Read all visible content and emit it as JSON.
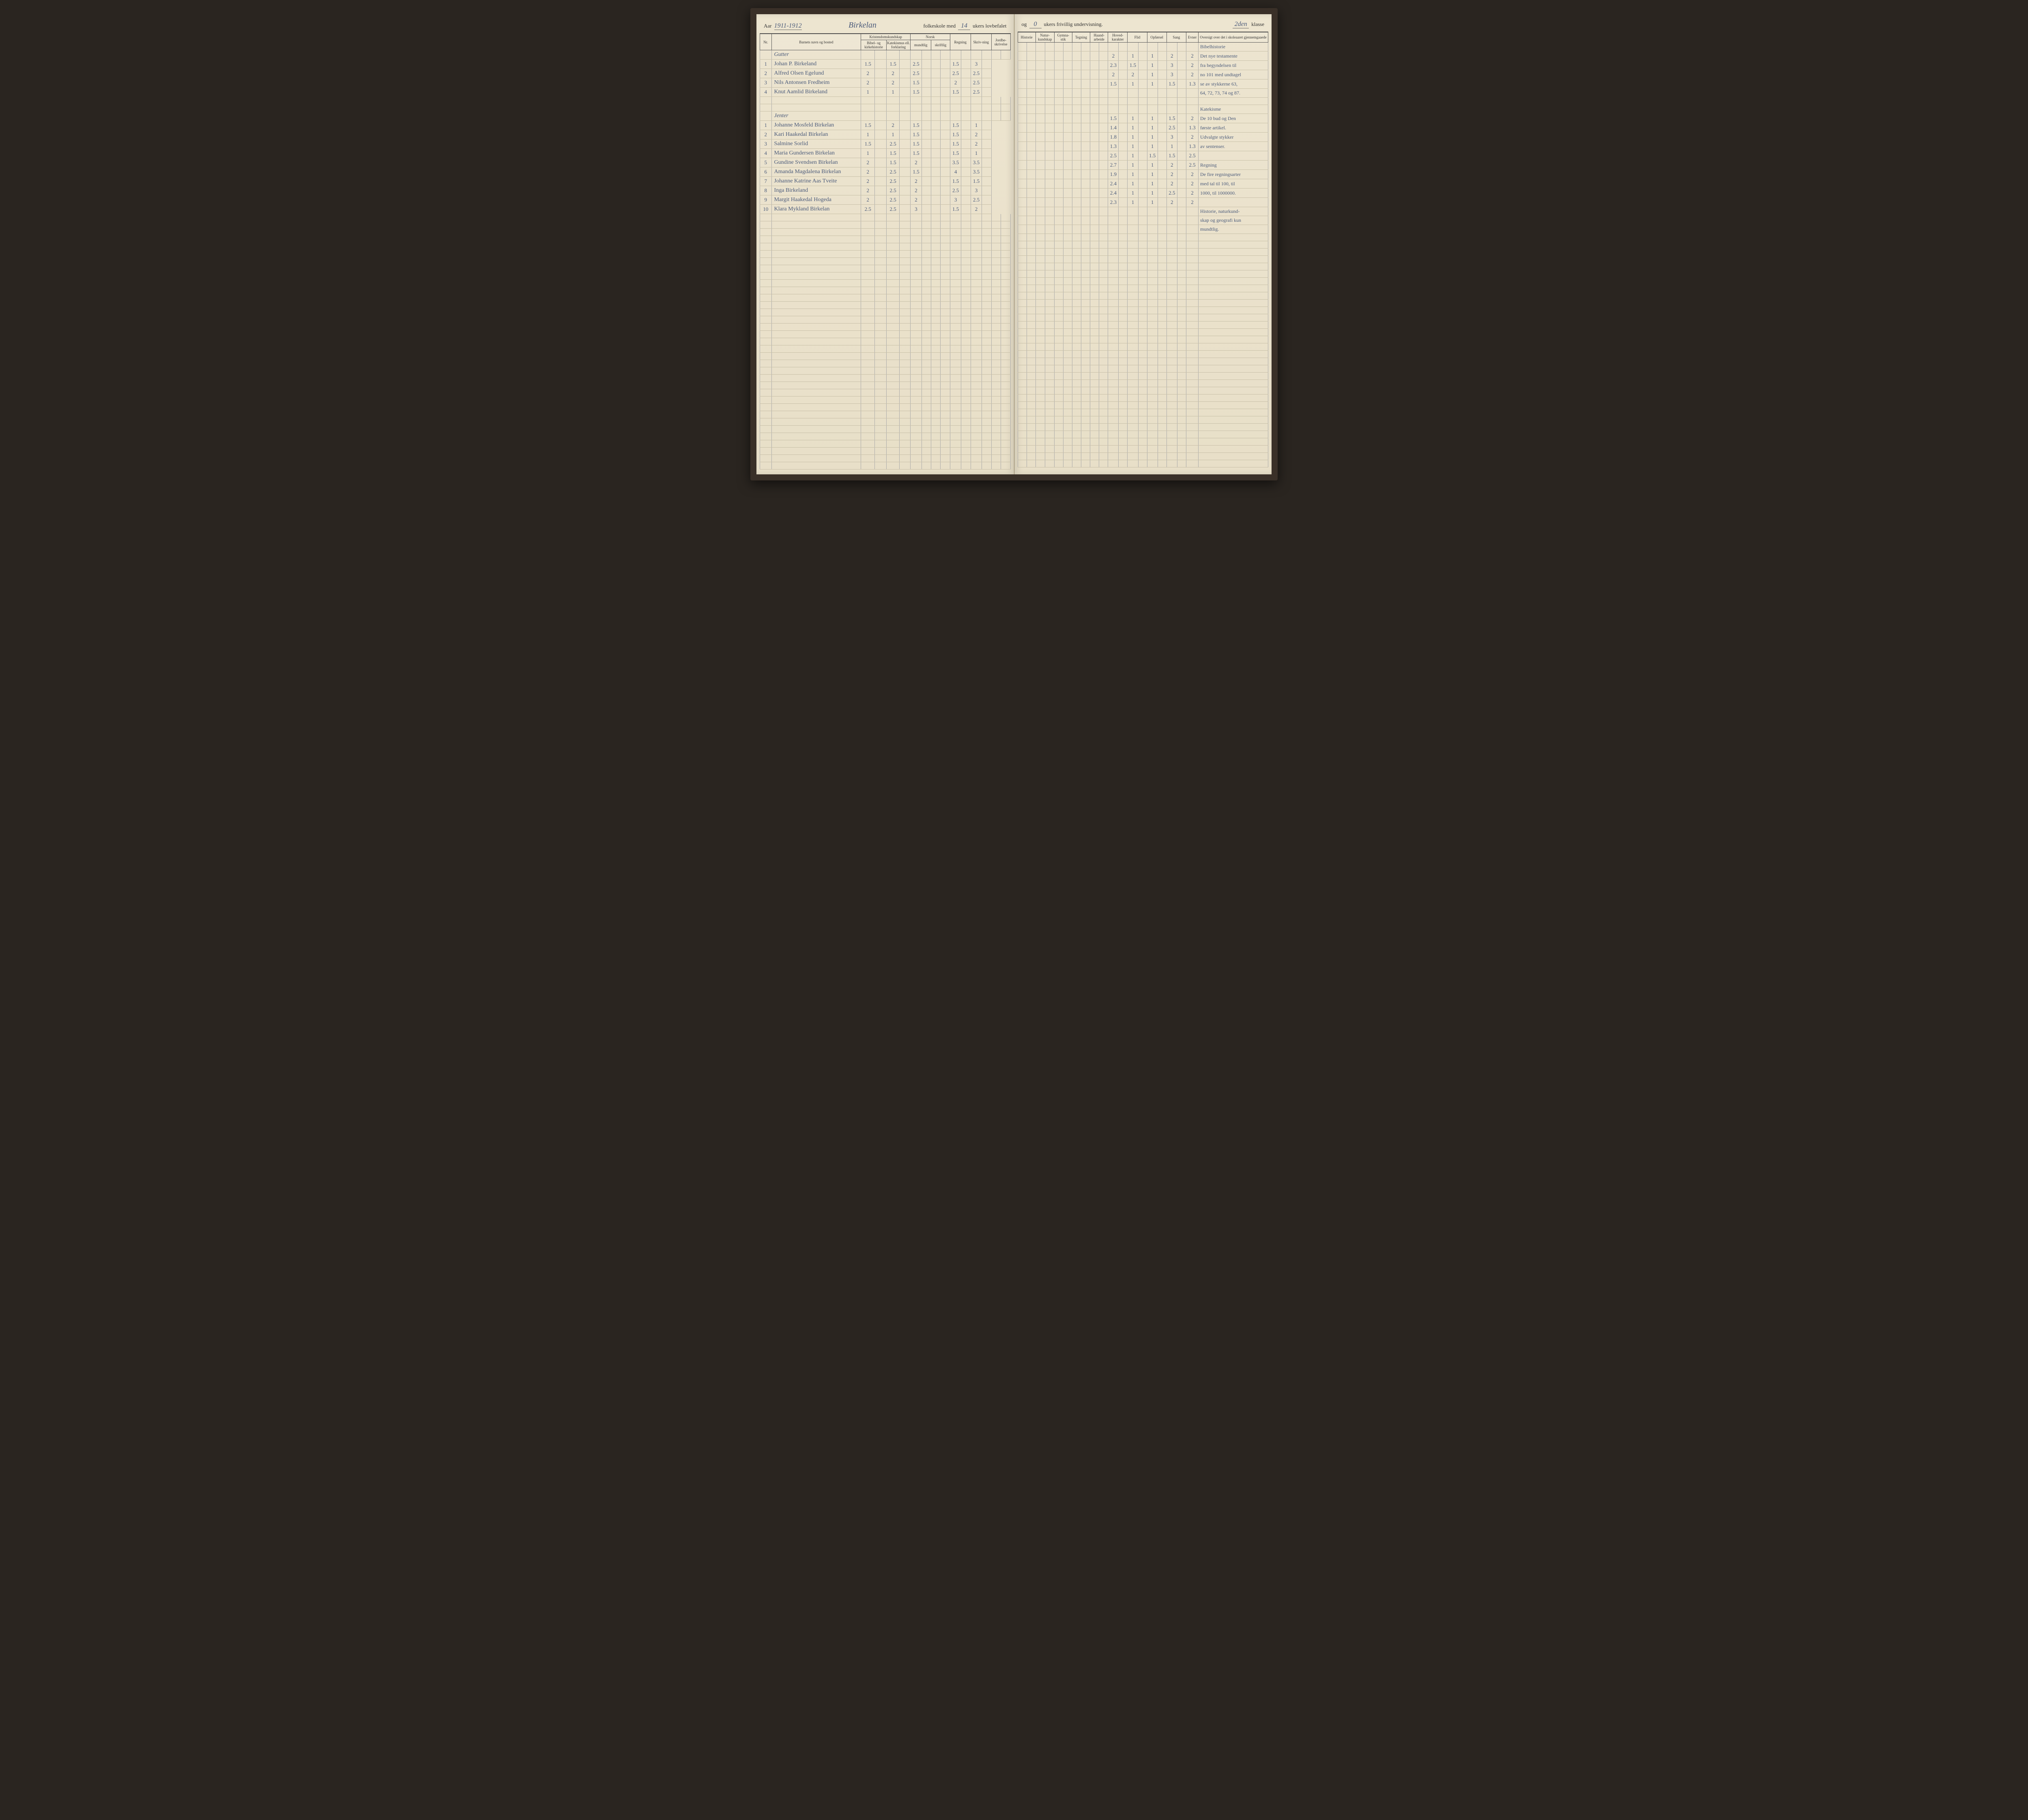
{
  "header": {
    "aar_label": "Aar",
    "aar_value": "1911-1912",
    "school_name": "Birkelan",
    "folkeskole_text": "folkeskole med",
    "weeks_lovbefalet": "14",
    "ukers_lovbefalet": "ukers lovbefalet",
    "og_text": "og",
    "weeks_frivillig": "0",
    "ukers_frivillig": "ukers frivillig undervisning.",
    "klasse_value": "2den",
    "klasse_label": "klasse"
  },
  "columns_left": {
    "nr": "Nr.",
    "navn": "Barnets navn og bosted",
    "kristendom": "Kristendomskundskap",
    "bibel": "Bibel- og kirkehistorie",
    "katekismus": "Katekismus ell. forklaring",
    "norsk": "Norsk",
    "mundtlig": "mundtlig",
    "skriftlig": "skriftlig",
    "regning": "Regning",
    "skrivning": "Skriv-ning",
    "jordbeskrivelse": "Jordbe-skrivelse"
  },
  "columns_right": {
    "historie": "Historie",
    "naturkundskap": "Natur-kundskap",
    "gymnastik": "Gymna-stik",
    "tegning": "Tegning",
    "haandarbeide": "Haand-arbeide",
    "hovedkarakter": "Hoved-karakter",
    "flid": "Flid",
    "opforsel": "Opførsel",
    "sang": "Sang",
    "evner": "Evner",
    "oversigt": "Oversigt over det i skoleaaret gjennemgaaede"
  },
  "sections": {
    "gutter": "Gutter",
    "jenter": "Jenter"
  },
  "gutter": [
    {
      "nr": "1",
      "name": "Johan P. Birkeland",
      "bibel": "1.5",
      "kat": "1.5",
      "mund": "2.5",
      "skr": "",
      "reg": "1.5",
      "skriv": "3",
      "hoved": "2",
      "flid": "1",
      "opf": "1",
      "sang": "2",
      "evner": "2"
    },
    {
      "nr": "2",
      "name": "Alfred Olsen Egelund",
      "bibel": "2",
      "kat": "2",
      "mund": "2.5",
      "skr": "",
      "reg": "2.5",
      "skriv": "2.5",
      "hoved": "2.3",
      "flid": "1.5",
      "opf": "1",
      "sang": "3",
      "evner": "2"
    },
    {
      "nr": "3",
      "name": "Nils Antonsen Fredheim",
      "bibel": "2",
      "kat": "2",
      "mund": "1.5",
      "skr": "",
      "reg": "2",
      "skriv": "2.5",
      "hoved": "2",
      "flid": "2",
      "opf": "1",
      "sang": "3",
      "evner": "2"
    },
    {
      "nr": "4",
      "name": "Knut Aamlid Birkeland",
      "bibel": "1",
      "kat": "1",
      "mund": "1.5",
      "skr": "",
      "reg": "1.5",
      "skriv": "2.5",
      "hoved": "1.5",
      "flid": "1",
      "opf": "1",
      "sang": "1.5",
      "evner": "1.3"
    }
  ],
  "jenter": [
    {
      "nr": "1",
      "name": "Johanne Mosfeld Birkelan",
      "bibel": "1.5",
      "kat": "2",
      "mund": "1.5",
      "skr": "",
      "reg": "1.5",
      "skriv": "1",
      "hoved": "1.5",
      "flid": "1",
      "opf": "1",
      "sang": "1.5",
      "evner": "2"
    },
    {
      "nr": "2",
      "name": "Kari Haakedal Birkelan",
      "bibel": "1",
      "kat": "1",
      "mund": "1.5",
      "skr": "",
      "reg": "1.5",
      "skriv": "2",
      "hoved": "1.4",
      "flid": "1",
      "opf": "1",
      "sang": "2.5",
      "evner": "1.3"
    },
    {
      "nr": "3",
      "name": "Salmine Sorlid",
      "bibel": "1.5",
      "kat": "2.5",
      "mund": "1.5",
      "skr": "",
      "reg": "1.5",
      "skriv": "2",
      "hoved": "1.8",
      "flid": "1",
      "opf": "1",
      "sang": "3",
      "evner": "2"
    },
    {
      "nr": "4",
      "name": "Maria Gundersen Birkelan",
      "bibel": "1",
      "kat": "1.5",
      "mund": "1.5",
      "skr": "",
      "reg": "1.5",
      "skriv": "1",
      "hoved": "1.3",
      "flid": "1",
      "opf": "1",
      "sang": "1",
      "evner": "1.3"
    },
    {
      "nr": "5",
      "name": "Gundine Svendsen Birkelan",
      "bibel": "2",
      "kat": "1.5",
      "mund": "2",
      "skr": "",
      "reg": "3.5",
      "skriv": "3.5",
      "hoved": "2.5",
      "flid": "1",
      "opf": "1.5",
      "sang": "1.5",
      "evner": "2.5"
    },
    {
      "nr": "6",
      "name": "Amanda Magdalena Birkelan",
      "bibel": "2",
      "kat": "2.5",
      "mund": "1.5",
      "skr": "",
      "reg": "4",
      "skriv": "3.5",
      "hoved": "2.7",
      "flid": "1",
      "opf": "1",
      "sang": "2",
      "evner": "2.5"
    },
    {
      "nr": "7",
      "name": "Johanne Katrine Aas Tveite",
      "bibel": "2",
      "kat": "2.5",
      "mund": "2",
      "skr": "",
      "reg": "1.5",
      "skriv": "1.5",
      "hoved": "1.9",
      "flid": "1",
      "opf": "1",
      "sang": "2",
      "evner": "2"
    },
    {
      "nr": "8",
      "name": "Inga Birkeland",
      "bibel": "2",
      "kat": "2.5",
      "mund": "2",
      "skr": "",
      "reg": "2.5",
      "skriv": "3",
      "hoved": "2.4",
      "flid": "1",
      "opf": "1",
      "sang": "2",
      "evner": "2"
    },
    {
      "nr": "9",
      "name": "Margit Haakedal Hogeda",
      "bibel": "2",
      "kat": "2.5",
      "mund": "2",
      "skr": "",
      "reg": "3",
      "skriv": "2.5",
      "hoved": "2.4",
      "flid": "1",
      "opf": "1",
      "sang": "2.5",
      "evner": "2"
    },
    {
      "nr": "10",
      "name": "Klara Mykland Birkelan",
      "bibel": "2.5",
      "kat": "2.5",
      "mund": "3",
      "skr": "",
      "reg": "1.5",
      "skriv": "2",
      "hoved": "2.3",
      "flid": "1",
      "opf": "1",
      "sang": "2",
      "evner": "2"
    }
  ],
  "notes": [
    "Bibelhistorie",
    "Det nye testamente",
    "fra begyndelsen til",
    "no 101 med undtagel",
    "se av stykkerne 63,",
    "64, 72, 73, 74 og 87.",
    "",
    "Katekisme",
    "De 10 bud og Den",
    "første artikel.",
    "Udvalgte stykker",
    "av sentenser.",
    "",
    "Regning",
    "De fire regningsarter",
    "med tal til 100, til",
    "1000, til 1000000.",
    "",
    "Historie, naturkund-",
    "skap og geografi kun",
    "mundtlig."
  ],
  "empty_rows": 35
}
